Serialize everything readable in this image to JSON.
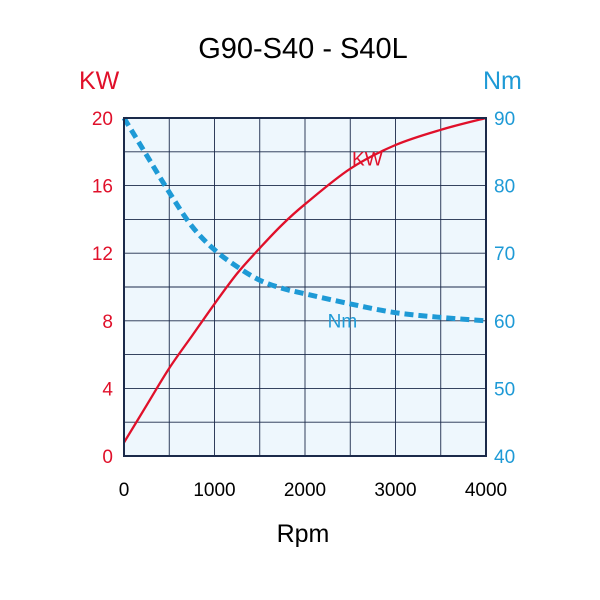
{
  "chart_data": {
    "type": "line",
    "title": "G90-S40 - S40L",
    "xlabel": "Rpm",
    "ylabel_left": "KW",
    "ylabel_right": "Nm",
    "xlim": [
      0,
      4000
    ],
    "ylim_left": [
      0,
      20
    ],
    "ylim_right": [
      40,
      90
    ],
    "x_ticks": [
      0,
      1000,
      2000,
      3000,
      4000
    ],
    "x_tick_labels": [
      "0",
      "1000",
      "2000",
      "3000",
      "4000"
    ],
    "y_left_ticks": [
      0,
      4,
      8,
      12,
      16,
      20
    ],
    "y_left_tick_labels": [
      "0",
      "4",
      "8",
      "12",
      "16",
      "20"
    ],
    "y_right_ticks": [
      40,
      50,
      60,
      70,
      80,
      90
    ],
    "y_right_tick_labels": [
      "40",
      "50",
      "60",
      "70",
      "80",
      "90"
    ],
    "grid": true,
    "series": [
      {
        "name": "KW",
        "axis": "left",
        "color": "#e0102a",
        "style": "solid",
        "x": [
          0,
          250,
          500,
          750,
          1000,
          1250,
          1500,
          1750,
          2000,
          2500,
          3000,
          3500,
          4000
        ],
        "values": [
          0.8,
          3.0,
          5.2,
          7.1,
          9.0,
          10.8,
          12.3,
          13.7,
          14.9,
          17.0,
          18.4,
          19.3,
          20.0
        ]
      },
      {
        "name": "Nm",
        "axis": "right",
        "color": "#1e9ad6",
        "style": "dashed",
        "x": [
          0,
          250,
          500,
          750,
          1000,
          1250,
          1500,
          1750,
          2000,
          2500,
          3000,
          3500,
          4000
        ],
        "values": [
          90,
          84.5,
          79,
          74,
          70.5,
          68,
          66,
          64.8,
          64,
          62.5,
          61.2,
          60.5,
          60
        ]
      }
    ],
    "annotations": [
      {
        "text": "KW",
        "series": "KW",
        "x": 2520,
        "y_left": 17.2
      },
      {
        "text": "Nm",
        "series": "Nm",
        "x": 2250,
        "y_right": 59
      }
    ]
  },
  "colors": {
    "kw": "#e0102a",
    "nm": "#1e9ad6",
    "frame": "#1b2a4a",
    "plot_bg": "#eef7fd",
    "grid": "#1b2a4a"
  }
}
